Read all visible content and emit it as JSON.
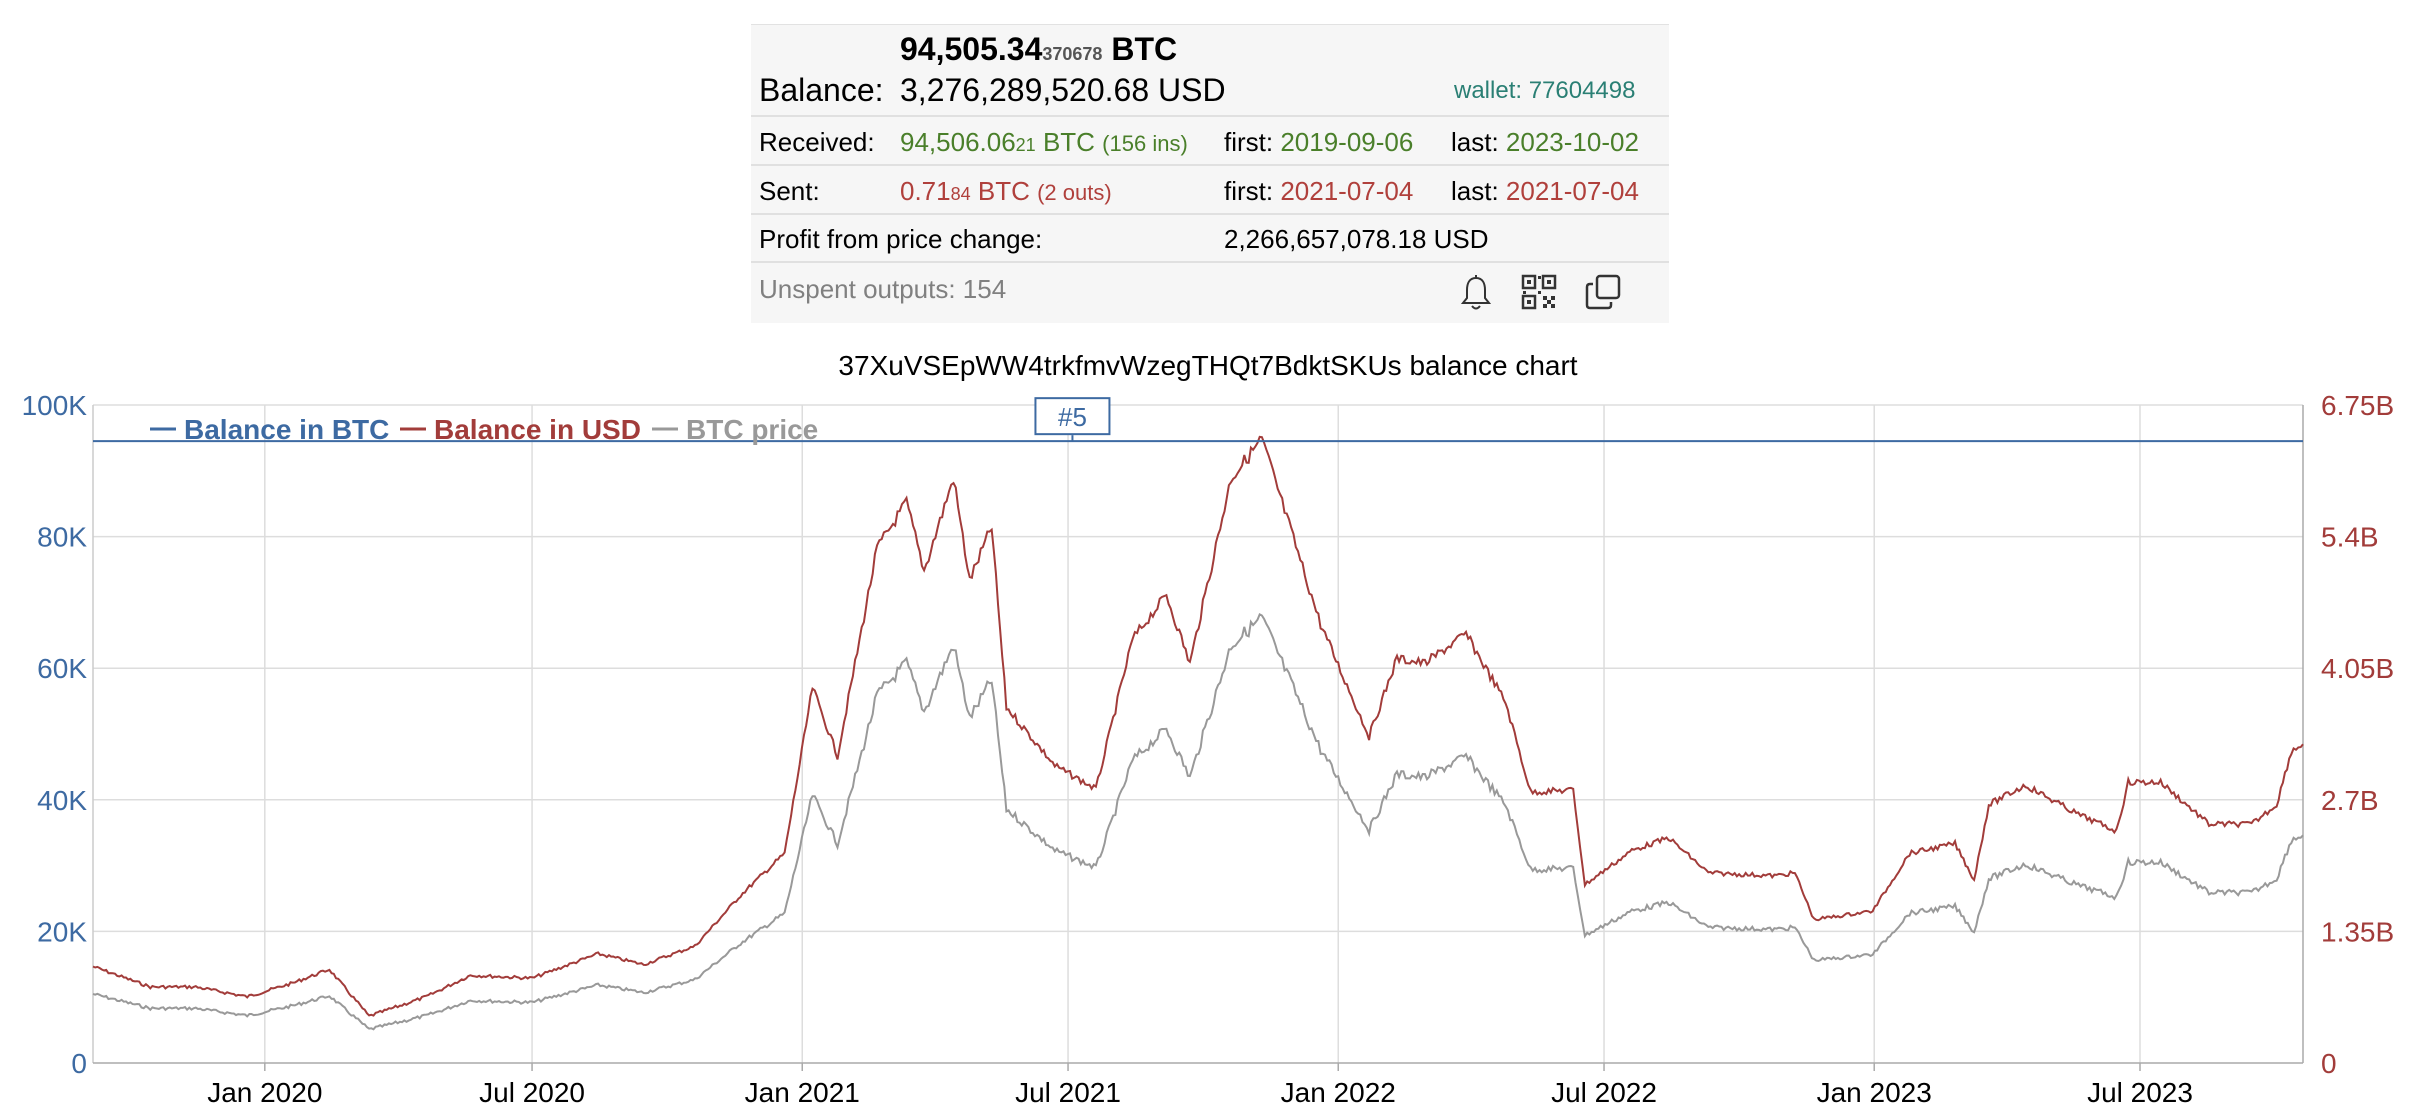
{
  "wallet_summary": {
    "balance_btc_main": "94,505.34",
    "balance_btc_frac": "370678",
    "balance_btc_unit": "BTC",
    "balance_label": "Balance:",
    "balance_usd": "3,276,289,520.68 USD",
    "wallet_label": "wallet: 77604498",
    "received": {
      "label": "Received:",
      "amount_main": "94,506.06",
      "amount_frac": "21",
      "unit": "BTC",
      "count": "(156 ins)",
      "first_label": "first:",
      "first_date": "2019-09-06",
      "last_label": "last:",
      "last_date": "2023-10-02"
    },
    "sent": {
      "label": "Sent:",
      "amount_main": "0.71",
      "amount_frac": "84",
      "unit": "BTC",
      "count": "(2 outs)",
      "first_label": "first:",
      "first_date": "2021-07-04",
      "last_label": "last:",
      "last_date": "2021-07-04"
    },
    "profit_label": "Profit from price change:",
    "profit_value": "2,266,657,078.18 USD",
    "unspent_label": "Unspent outputs: 154",
    "icons": [
      "bell-icon",
      "qr-code-icon",
      "copy-icon"
    ]
  },
  "chart_data": {
    "type": "line",
    "title": "37XuVSEpWW4trkfmvWzegTHQt7BdktSKUs balance chart",
    "x_ticks": [
      "Jan 2020",
      "Jul 2020",
      "Jan 2021",
      "Jul 2021",
      "Jan 2022",
      "Jul 2022",
      "Jan 2023",
      "Jul 2023"
    ],
    "y_left_ticks": [
      "0",
      "20K",
      "40K",
      "60K",
      "80K",
      "100K"
    ],
    "y_left_range": [
      0,
      100000
    ],
    "y_right_ticks": [
      "0",
      "1.35B",
      "2.7B",
      "4.05B",
      "5.4B",
      "6.75B"
    ],
    "y_right_range": [
      0,
      6750000000
    ],
    "x_range": [
      "2019-09-06",
      "2023-10-20"
    ],
    "grid": true,
    "legend_position": "top-left",
    "annotation": {
      "label": "#5",
      "date": "2021-07-04"
    },
    "colors": {
      "btc": "#3d6aa2",
      "usd": "#a23c3a",
      "price": "#999999"
    },
    "series": [
      {
        "name": "Balance in BTC",
        "axis": "left",
        "points": [
          [
            "2019-09-06",
            94505
          ],
          [
            "2023-10-20",
            94505
          ]
        ]
      },
      {
        "name": "Balance in USD",
        "axis": "right",
        "points": [
          [
            "2019-09-06",
            990000000
          ],
          [
            "2019-10-15",
            780000000
          ],
          [
            "2019-11-15",
            780000000
          ],
          [
            "2019-12-20",
            680000000
          ],
          [
            "2020-01-20",
            820000000
          ],
          [
            "2020-02-14",
            960000000
          ],
          [
            "2020-03-12",
            480000000
          ],
          [
            "2020-04-20",
            680000000
          ],
          [
            "2020-05-20",
            900000000
          ],
          [
            "2020-07-01",
            870000000
          ],
          [
            "2020-08-15",
            1120000000
          ],
          [
            "2020-09-15",
            1010000000
          ],
          [
            "2020-10-20",
            1200000000
          ],
          [
            "2020-11-20",
            1720000000
          ],
          [
            "2020-12-20",
            2150000000
          ],
          [
            "2021-01-08",
            3850000000
          ],
          [
            "2021-01-25",
            3150000000
          ],
          [
            "2021-02-21",
            5280000000
          ],
          [
            "2021-03-13",
            5750000000
          ],
          [
            "2021-03-25",
            5050000000
          ],
          [
            "2021-04-14",
            6000000000
          ],
          [
            "2021-04-25",
            4950000000
          ],
          [
            "2021-05-10",
            5500000000
          ],
          [
            "2021-05-20",
            3650000000
          ],
          [
            "2021-06-22",
            3050000000
          ],
          [
            "2021-07-20",
            2810000000
          ],
          [
            "2021-08-14",
            4350000000
          ],
          [
            "2021-09-06",
            4800000000
          ],
          [
            "2021-09-22",
            4100000000
          ],
          [
            "2021-10-20",
            6000000000
          ],
          [
            "2021-11-10",
            6400000000
          ],
          [
            "2021-11-30",
            5450000000
          ],
          [
            "2021-12-20",
            4500000000
          ],
          [
            "2022-01-22",
            3350000000
          ],
          [
            "2022-02-10",
            4150000000
          ],
          [
            "2022-03-01",
            4100000000
          ],
          [
            "2022-03-29",
            4400000000
          ],
          [
            "2022-04-25",
            3700000000
          ],
          [
            "2022-05-12",
            2780000000
          ],
          [
            "2022-06-10",
            2800000000
          ],
          [
            "2022-06-18",
            1830000000
          ],
          [
            "2022-07-20",
            2180000000
          ],
          [
            "2022-08-14",
            2310000000
          ],
          [
            "2022-09-10",
            1950000000
          ],
          [
            "2022-10-25",
            1920000000
          ],
          [
            "2022-11-08",
            1950000000
          ],
          [
            "2022-11-21",
            1470000000
          ],
          [
            "2022-12-31",
            1560000000
          ],
          [
            "2023-01-25",
            2150000000
          ],
          [
            "2023-02-25",
            2250000000
          ],
          [
            "2023-03-10",
            1880000000
          ],
          [
            "2023-03-20",
            2650000000
          ],
          [
            "2023-04-14",
            2850000000
          ],
          [
            "2023-05-20",
            2550000000
          ],
          [
            "2023-06-15",
            2380000000
          ],
          [
            "2023-06-23",
            2880000000
          ],
          [
            "2023-07-15",
            2880000000
          ],
          [
            "2023-08-17",
            2450000000
          ],
          [
            "2023-09-15",
            2450000000
          ],
          [
            "2023-10-02",
            2650000000
          ],
          [
            "2023-10-12",
            3200000000
          ],
          [
            "2023-10-20",
            3270000000
          ]
        ]
      },
      {
        "name": "BTC price",
        "axis": "left",
        "points": [
          [
            "2019-09-06",
            10500
          ],
          [
            "2019-10-15",
            8300
          ],
          [
            "2019-11-15",
            8300
          ],
          [
            "2019-12-20",
            7200
          ],
          [
            "2020-01-20",
            8700
          ],
          [
            "2020-02-14",
            10200
          ],
          [
            "2020-03-12",
            5100
          ],
          [
            "2020-04-20",
            7200
          ],
          [
            "2020-05-20",
            9500
          ],
          [
            "2020-07-01",
            9200
          ],
          [
            "2020-08-15",
            11850
          ],
          [
            "2020-09-15",
            10700
          ],
          [
            "2020-10-20",
            12700
          ],
          [
            "2020-11-20",
            18200
          ],
          [
            "2020-12-20",
            22750
          ],
          [
            "2021-01-08",
            40700
          ],
          [
            "2021-01-25",
            33300
          ],
          [
            "2021-02-21",
            55900
          ],
          [
            "2021-03-13",
            60800
          ],
          [
            "2021-03-25",
            53400
          ],
          [
            "2021-04-14",
            63500
          ],
          [
            "2021-04-25",
            52400
          ],
          [
            "2021-05-10",
            58200
          ],
          [
            "2021-05-20",
            38600
          ],
          [
            "2021-06-22",
            32300
          ],
          [
            "2021-07-20",
            29700
          ],
          [
            "2021-08-14",
            46000
          ],
          [
            "2021-09-06",
            50800
          ],
          [
            "2021-09-22",
            43400
          ],
          [
            "2021-10-20",
            63500
          ],
          [
            "2021-11-10",
            67700
          ],
          [
            "2021-11-30",
            57700
          ],
          [
            "2021-12-20",
            47600
          ],
          [
            "2022-01-22",
            35400
          ],
          [
            "2022-02-10",
            43900
          ],
          [
            "2022-03-01",
            43400
          ],
          [
            "2022-03-29",
            46600
          ],
          [
            "2022-04-25",
            39200
          ],
          [
            "2022-05-12",
            29400
          ],
          [
            "2022-06-10",
            29600
          ],
          [
            "2022-06-18",
            19400
          ],
          [
            "2022-07-20",
            23100
          ],
          [
            "2022-08-14",
            24400
          ],
          [
            "2022-09-10",
            20600
          ],
          [
            "2022-10-25",
            20300
          ],
          [
            "2022-11-08",
            20600
          ],
          [
            "2022-11-21",
            15600
          ],
          [
            "2022-12-31",
            16500
          ],
          [
            "2023-01-25",
            22750
          ],
          [
            "2023-02-25",
            23800
          ],
          [
            "2023-03-10",
            19900
          ],
          [
            "2023-03-20",
            28000
          ],
          [
            "2023-04-14",
            30200
          ],
          [
            "2023-05-20",
            27000
          ],
          [
            "2023-06-15",
            25200
          ],
          [
            "2023-06-23",
            30500
          ],
          [
            "2023-07-15",
            30500
          ],
          [
            "2023-08-17",
            25900
          ],
          [
            "2023-09-15",
            25900
          ],
          [
            "2023-10-02",
            28000
          ],
          [
            "2023-10-12",
            33900
          ],
          [
            "2023-10-20",
            34600
          ]
        ]
      }
    ]
  }
}
